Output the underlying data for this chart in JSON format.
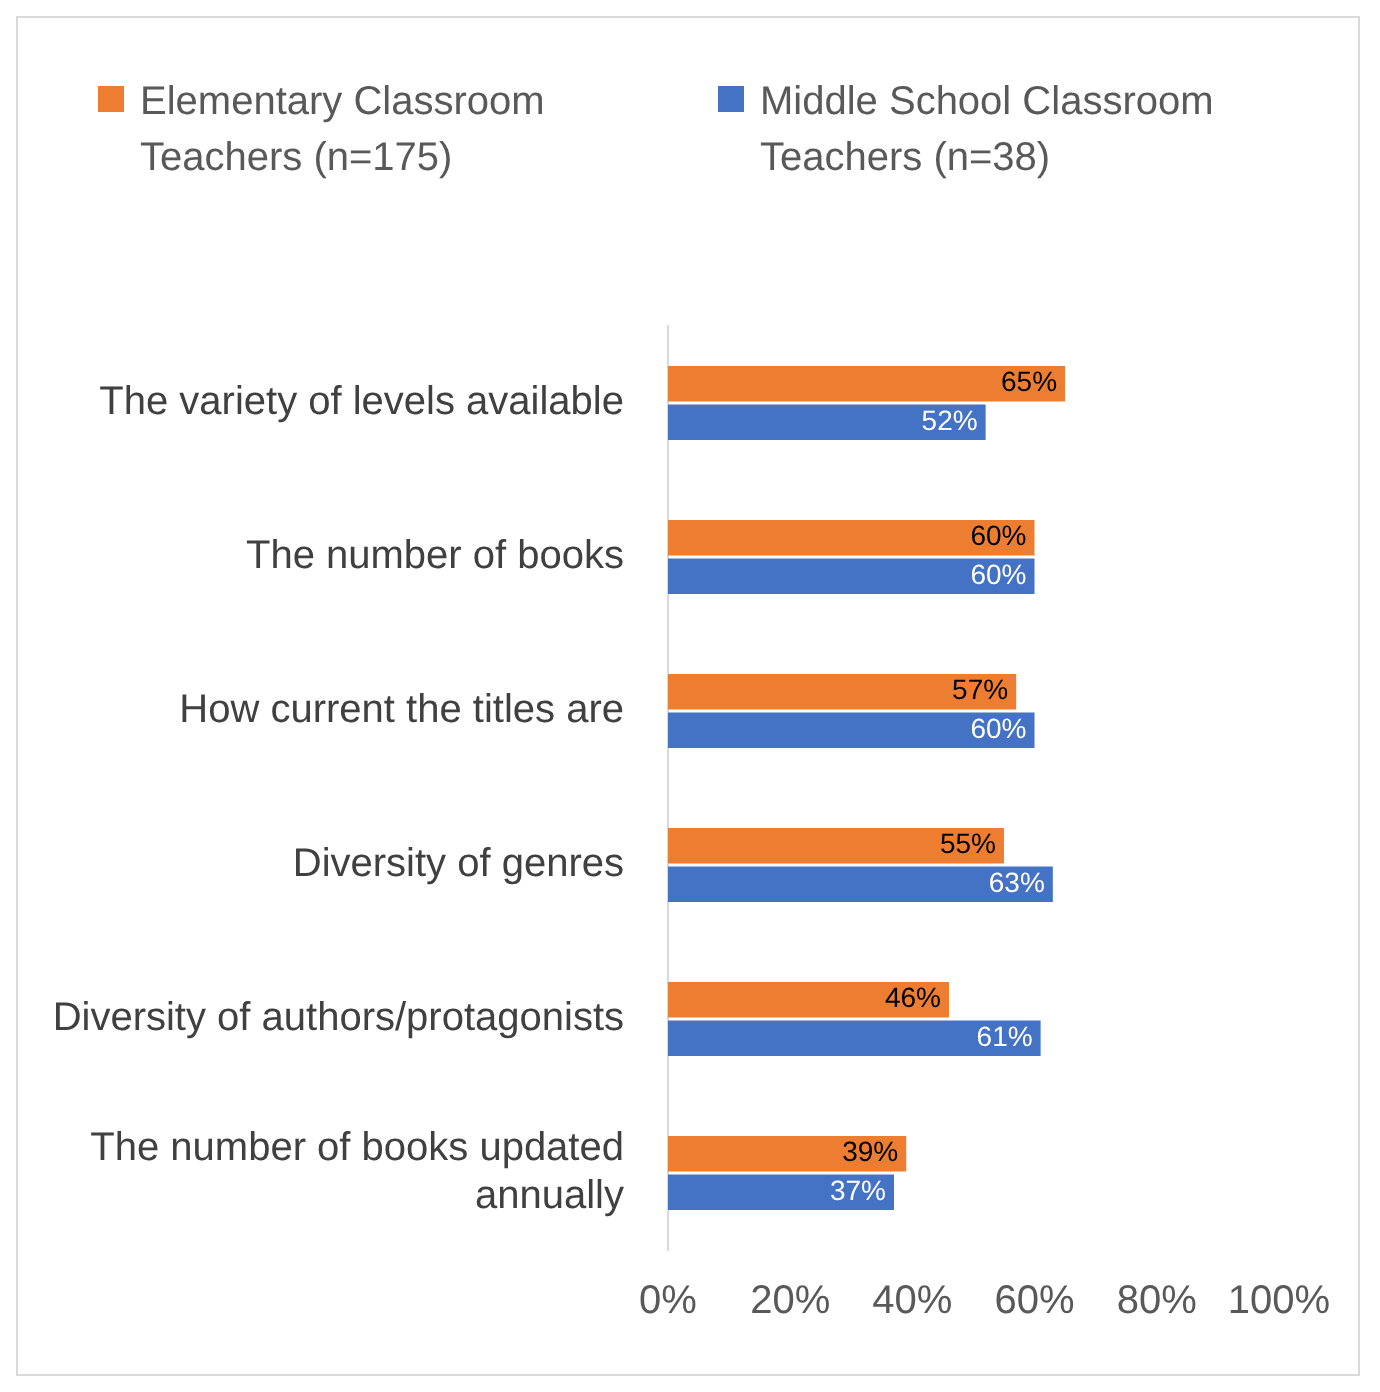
{
  "chart_data": {
    "type": "bar",
    "orientation": "horizontal",
    "categories": [
      "The variety of levels available",
      "The number of books",
      "How current the titles are",
      "Diversity of genres",
      "Diversity of authors/protagonists",
      "The number of books updated annually"
    ],
    "series": [
      {
        "name": "Elementary Classroom Teachers (n=175)",
        "color": "#ed7d31",
        "values": [
          65,
          60,
          57,
          55,
          46,
          39
        ],
        "value_labels": [
          "65%",
          "60%",
          "57%",
          "55%",
          "46%",
          "39%"
        ]
      },
      {
        "name": "Middle School Classroom Teachers (n=38)",
        "color": "#4472c4",
        "values": [
          52,
          60,
          60,
          63,
          61,
          37
        ],
        "value_labels": [
          "52%",
          "60%",
          "60%",
          "63%",
          "61%",
          "37%"
        ]
      }
    ],
    "xlim": [
      0,
      100
    ],
    "xticks": [
      {
        "value": 0,
        "label": "0%"
      },
      {
        "value": 20,
        "label": "20%"
      },
      {
        "value": 40,
        "label": "40%"
      },
      {
        "value": 60,
        "label": "60%"
      },
      {
        "value": 80,
        "label": "80%"
      },
      {
        "value": 100,
        "label": "100%"
      }
    ],
    "grid": false,
    "legend": "top"
  }
}
